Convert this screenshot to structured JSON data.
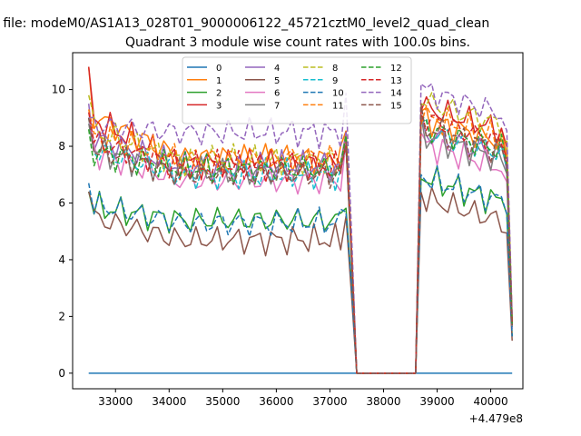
{
  "figure": {
    "suptitle": "n file: modeM0/AS1A13_028T01_9000006122_45721cztM0_level2_quad_clean"
  },
  "chart_data": {
    "type": "line",
    "title": "Quadrant 3 module wise count rates with 100.0s bins.",
    "xlabel": "",
    "ylabel": "",
    "x_offset_label": "+4.479e8",
    "xlim": [
      32200,
      40600
    ],
    "ylim": [
      -0.55,
      11.3
    ],
    "xticks": [
      33000,
      34000,
      35000,
      36000,
      37000,
      38000,
      39000,
      40000
    ],
    "yticks": [
      0,
      2,
      4,
      6,
      8,
      10
    ],
    "grid": false,
    "legend": {
      "position": "top-center",
      "columns": 4
    },
    "x": [
      32500,
      32600,
      32700,
      32800,
      32900,
      33000,
      33100,
      33200,
      33300,
      33400,
      33500,
      33600,
      33700,
      33800,
      33900,
      34000,
      34100,
      34200,
      34300,
      34400,
      34500,
      34600,
      34700,
      34800,
      34900,
      35000,
      35100,
      35200,
      35300,
      35400,
      35500,
      35600,
      35700,
      35800,
      35900,
      36000,
      36100,
      36200,
      36300,
      36400,
      36500,
      36600,
      36700,
      36800,
      36900,
      37000,
      37100,
      37200,
      37300,
      37400,
      37500,
      37600,
      37700,
      37800,
      37900,
      38000,
      38100,
      38200,
      38300,
      38400,
      38500,
      38600,
      38700,
      38800,
      38900,
      39000,
      39100,
      39200,
      39300,
      39400,
      39500,
      39600,
      39700,
      39800,
      39900,
      40000,
      40100,
      40200,
      40300,
      40400
    ],
    "gap": {
      "start": 37500,
      "end": 38600
    },
    "series": [
      {
        "name": "0",
        "color": "#1f77b4",
        "dash": false,
        "kind": "zero",
        "p": 0
      },
      {
        "name": "1",
        "color": "#ff7f0e",
        "dash": false,
        "start": 10.8,
        "base": 7.6,
        "rb": 8.0,
        "p": 1
      },
      {
        "name": "2",
        "color": "#2ca02c",
        "dash": false,
        "start": 6.4,
        "base": 5.4,
        "rb": 5.9,
        "p": 2
      },
      {
        "name": "3",
        "color": "#d62728",
        "dash": false,
        "start": 10.8,
        "base": 7.4,
        "rb": 8.4,
        "p": 3
      },
      {
        "name": "4",
        "color": "#9467bd",
        "dash": false,
        "start": 9.5,
        "base": 7.3,
        "rb": 7.5,
        "p": 4
      },
      {
        "name": "5",
        "color": "#8c564b",
        "dash": false,
        "start": 6.4,
        "base": 4.7,
        "rb": 5.2,
        "p": 5
      },
      {
        "name": "6",
        "color": "#e377c2",
        "dash": false,
        "start": 9.0,
        "base": 6.8,
        "rb": 7.1,
        "p": 6
      },
      {
        "name": "7",
        "color": "#7f7f7f",
        "dash": false,
        "start": 8.8,
        "base": 7.1,
        "rb": 7.4,
        "p": 7
      },
      {
        "name": "8",
        "color": "#bcbd22",
        "dash": true,
        "start": 9.8,
        "base": 7.5,
        "rb": 8.6,
        "p": 8
      },
      {
        "name": "9",
        "color": "#17becf",
        "dash": true,
        "start": 9.0,
        "base": 7.0,
        "rb": 7.6,
        "p": 9
      },
      {
        "name": "10",
        "color": "#1f77b4",
        "dash": true,
        "start": 6.7,
        "base": 5.3,
        "rb": 5.9,
        "p": 10
      },
      {
        "name": "11",
        "color": "#ff7f0e",
        "dash": true,
        "start": 9.3,
        "base": 7.6,
        "rb": 8.1,
        "p": 11
      },
      {
        "name": "12",
        "color": "#2ca02c",
        "dash": true,
        "start": 8.6,
        "base": 7.2,
        "rb": 7.7,
        "p": 12
      },
      {
        "name": "13",
        "color": "#d62728",
        "dash": true,
        "start": 9.2,
        "base": 7.3,
        "rb": 8.0,
        "p": 13
      },
      {
        "name": "14",
        "color": "#9467bd",
        "dash": true,
        "start": 9.0,
        "base": 8.5,
        "rb": 9.0,
        "p": 14
      },
      {
        "name": "15",
        "color": "#8c564b",
        "dash": true,
        "start": 9.0,
        "base": 7.0,
        "rb": 7.7,
        "p": 15
      }
    ]
  }
}
